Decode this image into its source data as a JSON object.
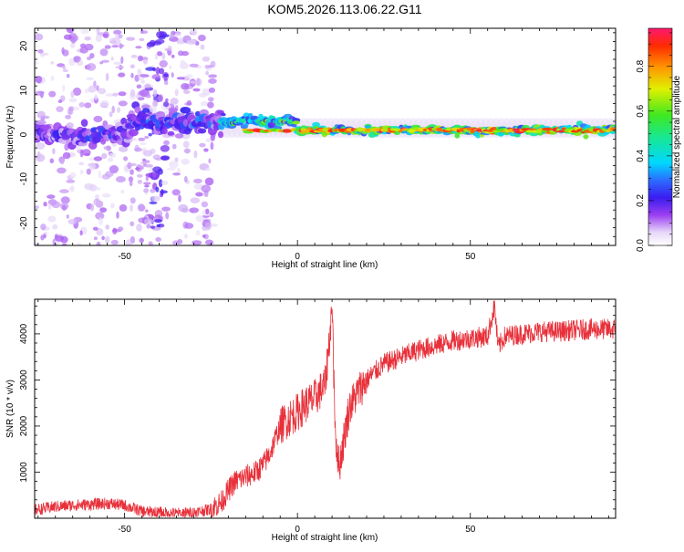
{
  "figure_title": "KOM5.2026.113.06.22.G11",
  "chart_data": [
    {
      "type": "heatmap",
      "title": "KOM5.2026.113.06.22.G11",
      "xlabel": "Height of straight line (km)",
      "ylabel": "Frequency (Hz)",
      "xlim": [
        -76,
        92
      ],
      "ylim": [
        -25,
        24
      ],
      "x_ticks": [
        -50,
        0,
        50
      ],
      "y_ticks": [
        -20,
        -10,
        0,
        10,
        20
      ],
      "colorbar": {
        "label": "Normalized spectral amplitude",
        "range": [
          0,
          0.97
        ],
        "ticks": [
          0.0,
          0.2,
          0.4,
          0.6,
          0.8
        ]
      },
      "description_bands": [
        {
          "x_from": -76,
          "x_to": -48,
          "freq_center": 0,
          "amplitude": 0.25
        },
        {
          "x_from": -48,
          "x_to": -22,
          "freq_center": 3,
          "amplitude": 0.3
        },
        {
          "x_from": -22,
          "x_to": 0,
          "freq_center": 3,
          "amplitude": 0.6
        },
        {
          "x_from": 0,
          "x_to": 92,
          "freq_center": 1,
          "amplitude": 0.85
        }
      ]
    },
    {
      "type": "line",
      "xlabel": "Height of straight line (km)",
      "ylabel": "SNR (10 * v/v)",
      "xlim": [
        -76,
        92
      ],
      "ylim": [
        0,
        4750
      ],
      "x_ticks": [
        -50,
        0,
        50
      ],
      "y_ticks": [
        1000,
        2000,
        3000,
        4000
      ],
      "color": "#e8303a",
      "series": [
        {
          "name": "SNR",
          "x": [
            -76,
            -70,
            -65,
            -60,
            -55,
            -50,
            -45,
            -40,
            -35,
            -30,
            -25,
            -22,
            -20,
            -18,
            -15,
            -12,
            -10,
            -8,
            -5,
            -2,
            0,
            2,
            5,
            8,
            10,
            11,
            12,
            15,
            18,
            20,
            22,
            25,
            30,
            35,
            40,
            45,
            50,
            55,
            57,
            58,
            60,
            65,
            70,
            75,
            80,
            85,
            92
          ],
          "values": [
            180,
            250,
            280,
            300,
            320,
            280,
            150,
            120,
            100,
            120,
            200,
            350,
            600,
            800,
            900,
            1000,
            1150,
            1400,
            2000,
            2200,
            2300,
            2450,
            2600,
            2900,
            4500,
            1800,
            1100,
            2400,
            2800,
            3000,
            3150,
            3350,
            3500,
            3650,
            3750,
            3850,
            3900,
            3950,
            4600,
            3700,
            3950,
            4000,
            4050,
            4050,
            4080,
            4100,
            4100
          ]
        }
      ]
    }
  ]
}
